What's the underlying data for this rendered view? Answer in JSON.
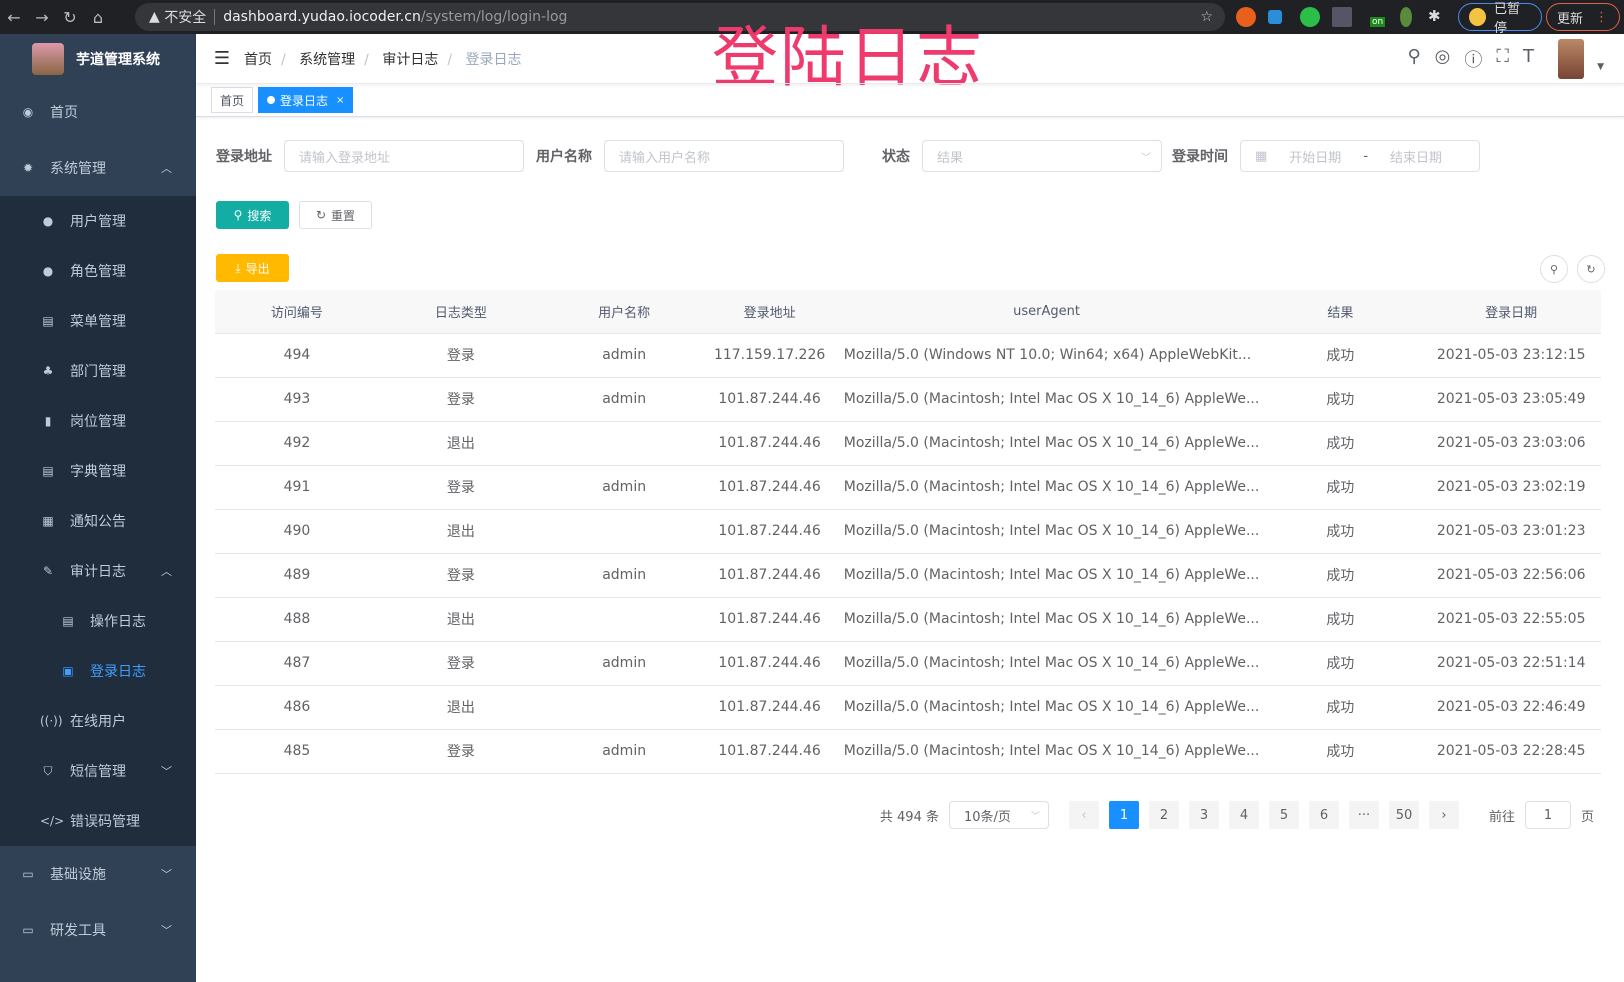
{
  "browser": {
    "security": "不安全",
    "host": "dashboard.yudao.iocoder.cn",
    "path": "/system/log/login-log",
    "profile": "已暂停",
    "update": "更新",
    "ext_badge": "on"
  },
  "overlay_title": "登陆日志",
  "sidebar": {
    "title": "芋道管理系统",
    "items": [
      {
        "label": "首页",
        "icon": "dashboard-icon"
      },
      {
        "label": "系统管理",
        "icon": "gear-icon",
        "expanded": true,
        "children": [
          {
            "label": "用户管理",
            "icon": "user-icon"
          },
          {
            "label": "角色管理",
            "icon": "peoples-icon"
          },
          {
            "label": "菜单管理",
            "icon": "tree-table-icon"
          },
          {
            "label": "部门管理",
            "icon": "tree-icon"
          },
          {
            "label": "岗位管理",
            "icon": "post-icon"
          },
          {
            "label": "字典管理",
            "icon": "dict-icon"
          },
          {
            "label": "通知公告",
            "icon": "message-icon"
          },
          {
            "label": "审计日志",
            "icon": "log-icon",
            "expanded": true,
            "children": [
              {
                "label": "操作日志",
                "icon": "form-icon"
              },
              {
                "label": "登录日志",
                "icon": "logininfor-icon",
                "active": true
              }
            ]
          },
          {
            "label": "在线用户",
            "icon": "online-icon"
          },
          {
            "label": "短信管理",
            "icon": "shield-icon",
            "expanded": false
          },
          {
            "label": "错误码管理",
            "icon": "code-icon"
          }
        ]
      },
      {
        "label": "基础设施",
        "icon": "monitor-icon",
        "expanded": false
      },
      {
        "label": "研发工具",
        "icon": "tool-icon",
        "expanded": false
      }
    ]
  },
  "header": {
    "breadcrumb": [
      "首页",
      "系统管理",
      "审计日志",
      "登录日志"
    ]
  },
  "tags": [
    {
      "label": "首页"
    },
    {
      "label": "登录日志",
      "active": true
    }
  ],
  "filters": {
    "address_label": "登录地址",
    "address_ph": "请输入登录地址",
    "user_label": "用户名称",
    "user_ph": "请输入用户名称",
    "status_label": "状态",
    "status_ph": "结果",
    "time_label": "登录时间",
    "start_ph": "开始日期",
    "range_sep": "-",
    "end_ph": "结束日期"
  },
  "buttons": {
    "search": "搜索",
    "reset": "重置",
    "export": "导出"
  },
  "table": {
    "columns": [
      "访问编号",
      "日志类型",
      "用户名称",
      "登录地址",
      "userAgent",
      "结果",
      "登录日期"
    ],
    "rows": [
      [
        "494",
        "登录",
        "admin",
        "117.159.17.226",
        "Mozilla/5.0 (Windows NT 10.0; Win64; x64) AppleWebKit...",
        "成功",
        "2021-05-03 23:12:15"
      ],
      [
        "493",
        "登录",
        "admin",
        "101.87.244.46",
        "Mozilla/5.0 (Macintosh; Intel Mac OS X 10_14_6) AppleWe...",
        "成功",
        "2021-05-03 23:05:49"
      ],
      [
        "492",
        "退出",
        "",
        "101.87.244.46",
        "Mozilla/5.0 (Macintosh; Intel Mac OS X 10_14_6) AppleWe...",
        "成功",
        "2021-05-03 23:03:06"
      ],
      [
        "491",
        "登录",
        "admin",
        "101.87.244.46",
        "Mozilla/5.0 (Macintosh; Intel Mac OS X 10_14_6) AppleWe...",
        "成功",
        "2021-05-03 23:02:19"
      ],
      [
        "490",
        "退出",
        "",
        "101.87.244.46",
        "Mozilla/5.0 (Macintosh; Intel Mac OS X 10_14_6) AppleWe...",
        "成功",
        "2021-05-03 23:01:23"
      ],
      [
        "489",
        "登录",
        "admin",
        "101.87.244.46",
        "Mozilla/5.0 (Macintosh; Intel Mac OS X 10_14_6) AppleWe...",
        "成功",
        "2021-05-03 22:56:06"
      ],
      [
        "488",
        "退出",
        "",
        "101.87.244.46",
        "Mozilla/5.0 (Macintosh; Intel Mac OS X 10_14_6) AppleWe...",
        "成功",
        "2021-05-03 22:55:05"
      ],
      [
        "487",
        "登录",
        "admin",
        "101.87.244.46",
        "Mozilla/5.0 (Macintosh; Intel Mac OS X 10_14_6) AppleWe...",
        "成功",
        "2021-05-03 22:51:14"
      ],
      [
        "486",
        "退出",
        "",
        "101.87.244.46",
        "Mozilla/5.0 (Macintosh; Intel Mac OS X 10_14_6) AppleWe...",
        "成功",
        "2021-05-03 22:46:49"
      ],
      [
        "485",
        "登录",
        "admin",
        "101.87.244.46",
        "Mozilla/5.0 (Macintosh; Intel Mac OS X 10_14_6) AppleWe...",
        "成功",
        "2021-05-03 22:28:45"
      ]
    ]
  },
  "pagination": {
    "total": "共 494 条",
    "page_size": "10条/页",
    "pages": [
      "1",
      "2",
      "3",
      "4",
      "5",
      "6",
      "···",
      "50"
    ],
    "current": "1",
    "goto_label": "前往",
    "goto_value": "1",
    "goto_suffix": "页"
  },
  "colors": {
    "sidebar": "#304156",
    "submenu": "#1f2d3d",
    "primary": "#1890ff",
    "search_btn": "#13ada4",
    "export_btn": "#ffba00",
    "overlay": "#ee3a6c"
  }
}
